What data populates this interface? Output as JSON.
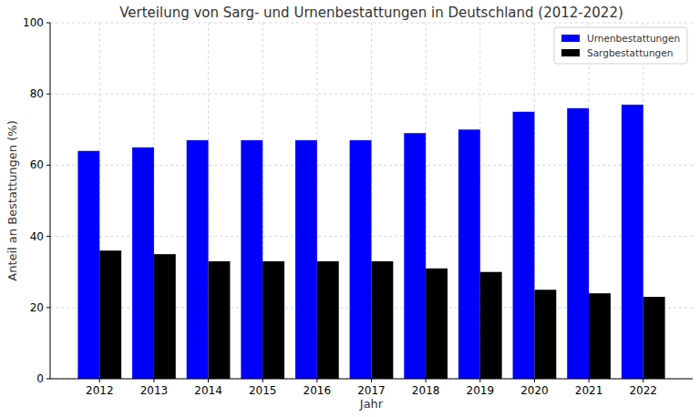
{
  "chart_data": {
    "type": "bar",
    "title": "Verteilung von Sarg- und Urnenbestattungen in Deutschland (2012-2022)",
    "x_label": "Jahr",
    "y_label": "Anteil an Bestattungen (%)",
    "categories": [
      "2012",
      "2013",
      "2014",
      "2015",
      "2016",
      "2017",
      "2018",
      "2019",
      "2020",
      "2021",
      "2022"
    ],
    "series": [
      {
        "name": "Urnenbestattungen",
        "color": "#0000ff",
        "values": [
          64,
          65,
          67,
          67,
          67,
          67,
          69,
          70,
          75,
          76,
          77
        ]
      },
      {
        "name": "Sargbestattungen",
        "color": "#000000",
        "values": [
          36,
          35,
          33,
          33,
          33,
          33,
          31,
          30,
          25,
          24,
          23
        ]
      }
    ],
    "ylim": [
      0,
      100
    ],
    "yticks": [
      0,
      20,
      40,
      60,
      80,
      100
    ],
    "grid": true,
    "legend": "upper right"
  }
}
